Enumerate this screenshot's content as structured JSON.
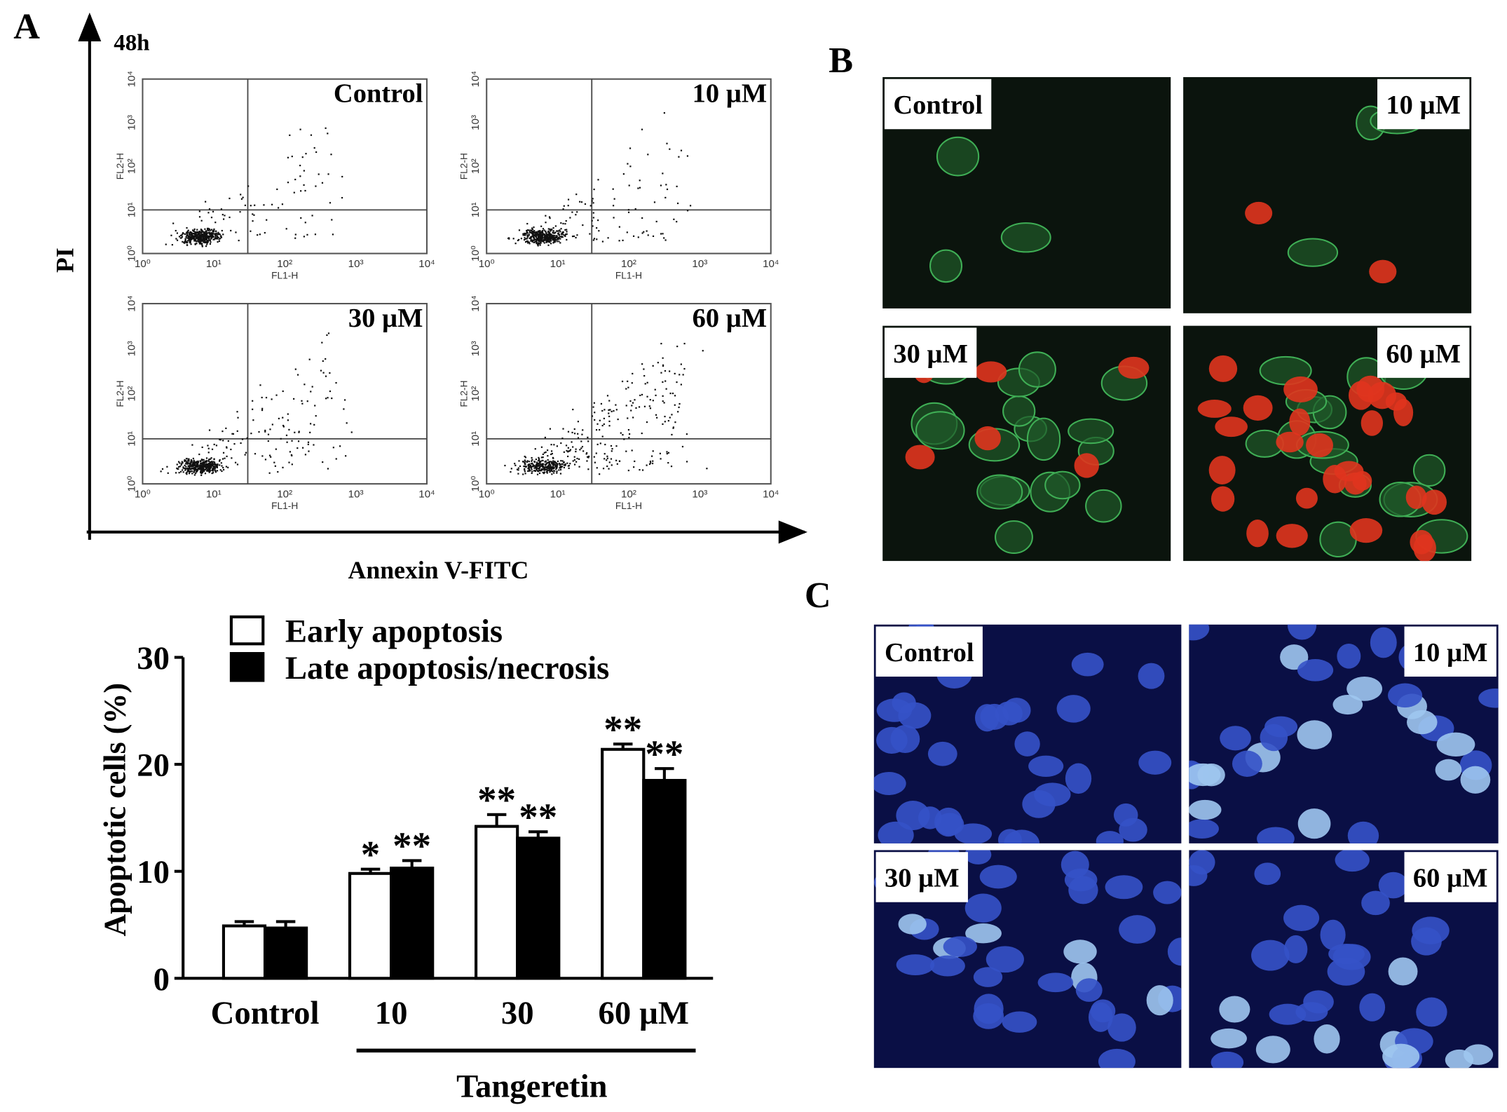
{
  "panel_labels": [
    "A",
    "B",
    "C"
  ],
  "flow_cytometry": {
    "timepoint": "48h",
    "y_label": "PI",
    "x_label": "Annexin V-FITC",
    "tick_labels": [
      "10⁰",
      "10¹",
      "10²",
      "10³",
      "10⁴"
    ],
    "panels": [
      {
        "label": "Control",
        "x_axis_label": "FL1-H",
        "y_axis_label": "FL2-H"
      },
      {
        "label": "10 µM",
        "x_axis_label": "FL1-H",
        "y_axis_label": "FL2-H"
      },
      {
        "label": "30 µM",
        "x_axis_label": "FL1-H",
        "y_axis_label": "FL2-H"
      },
      {
        "label": "60 µM",
        "x_axis_label": "FL1-H",
        "y_axis_label": "FL2-H"
      }
    ]
  },
  "fluorescence_panels": {
    "labels": [
      "Control",
      "10 µM",
      "30 µM",
      "60 µM"
    ]
  },
  "hoechst_panels": {
    "labels": [
      "Control",
      "10 µM",
      "30 µM",
      "60 µM"
    ]
  },
  "chart_data": {
    "type": "bar",
    "y_label": "Apoptotic cells (%)",
    "x_label": "Tangeretin",
    "categories": [
      "Control",
      "10",
      "30",
      "60 µM"
    ],
    "series": [
      {
        "name": "Early apoptosis",
        "color": "#ffffff",
        "values": [
          4.9,
          9.8,
          14.2,
          21.4
        ],
        "errors": [
          0.4,
          0.4,
          1.1,
          0.5
        ],
        "annotations": [
          null,
          "*",
          "**",
          "**"
        ]
      },
      {
        "name": "Late apoptosis/necrosis",
        "color": "#000000",
        "values": [
          4.7,
          10.3,
          13.1,
          18.5
        ],
        "errors": [
          0.6,
          0.7,
          0.6,
          1.1
        ],
        "annotations": [
          null,
          "**",
          "**",
          "**"
        ]
      }
    ],
    "ylim": [
      0,
      30
    ],
    "yticks": [
      0,
      10,
      20,
      30
    ]
  }
}
